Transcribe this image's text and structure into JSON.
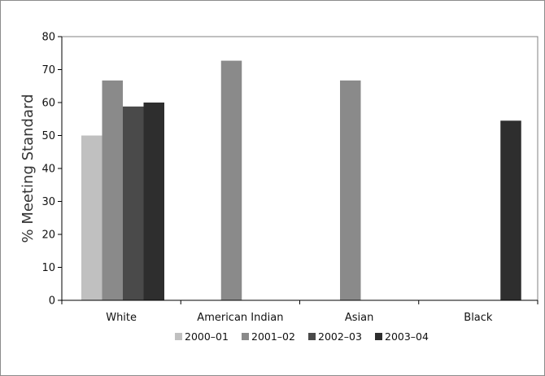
{
  "chart_data": {
    "type": "bar",
    "title": "",
    "xlabel": "",
    "ylabel": "% Meeting Standard",
    "ylim": [
      0,
      80
    ],
    "yticks": [
      0,
      10,
      20,
      30,
      40,
      50,
      60,
      70,
      80
    ],
    "grid": false,
    "legend_position": "bottom",
    "categories": [
      "White",
      "American Indian",
      "Asian",
      "Black"
    ],
    "series": [
      {
        "name": "2000–01",
        "color": "#c0c0c0",
        "values": [
          50,
          null,
          null,
          null
        ]
      },
      {
        "name": "2001–02",
        "color": "#8a8a8a",
        "values": [
          66.7,
          72.7,
          66.7,
          null
        ]
      },
      {
        "name": "2002–03",
        "color": "#4a4a4a",
        "values": [
          58.8,
          null,
          null,
          null
        ]
      },
      {
        "name": "2003–04",
        "color": "#2e2e2e",
        "values": [
          60,
          null,
          null,
          54.5
        ]
      }
    ]
  }
}
